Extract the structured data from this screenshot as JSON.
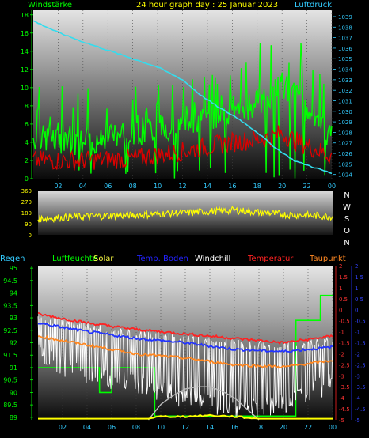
{
  "header": {
    "left": "Windstärke",
    "center": "24 hour graph day : 25 Januar 2023",
    "right": "Luftdruck"
  },
  "compass": [
    "N",
    "W",
    "S",
    "O",
    "N"
  ],
  "legend": [
    {
      "text": "Regen",
      "color": "#33CCFF"
    },
    {
      "text": "Luftfeuchte",
      "color": "#00FF00"
    },
    {
      "text": "Solar",
      "color": "#FFFF44"
    },
    {
      "text": "Temp. Boden",
      "color": "#2222FF"
    },
    {
      "text": "Windchill",
      "color": "#FFFFFF"
    },
    {
      "text": "Temperatur",
      "color": "#FF2222"
    },
    {
      "text": "Taupunkt",
      "color": "#FF8822"
    }
  ],
  "chart_data": [
    {
      "type": "line",
      "name": "wind-pressure",
      "x_ticks": [
        "02",
        "04",
        "06",
        "08",
        "10",
        "12",
        "14",
        "16",
        "18",
        "20",
        "22",
        "00"
      ],
      "y_left_ticks": [
        "0",
        "2",
        "4",
        "6",
        "8",
        "10",
        "12",
        "14",
        "16",
        "18"
      ],
      "y_left_range": [
        0,
        18.5
      ],
      "y_right_ticks": [
        "1024",
        "1025",
        "1026",
        "1027",
        "1028",
        "1029",
        "1030",
        "1031",
        "1032",
        "1033",
        "1034",
        "1035",
        "1036",
        "1037",
        "1038",
        "1039"
      ],
      "y_right_range": [
        1023.6,
        1039.6
      ],
      "series": [
        {
          "color": "#00FF00",
          "hours": [
            0,
            4,
            8,
            12,
            16,
            19,
            20,
            21,
            24
          ],
          "values": [
            4.5,
            4.0,
            5.0,
            6.0,
            7.0,
            9.0,
            10.5,
            9.0,
            4.5
          ]
        },
        {
          "color": "#DD0000",
          "hours": [
            0,
            4,
            8,
            12,
            16,
            19,
            20,
            21,
            24
          ],
          "values": [
            2.0,
            2.0,
            2.2,
            3.0,
            4.0,
            4.5,
            5.0,
            4.2,
            2.5
          ]
        },
        {
          "color": "#33DDEE",
          "hours": [
            0,
            2,
            4,
            6,
            8,
            10,
            12,
            13.5,
            15,
            16.5,
            18,
            19.5,
            21,
            22.5,
            24
          ],
          "values": [
            1038.6,
            1037.5,
            1036.6,
            1035.8,
            1035.0,
            1034.2,
            1033.0,
            1031.5,
            1030.3,
            1029.3,
            1028.0,
            1026.5,
            1025.3,
            1024.7,
            1024.1
          ]
        }
      ]
    },
    {
      "type": "line",
      "name": "wind-direction",
      "x_ticks": [],
      "y_ticks": [
        "0",
        "90",
        "180",
        "270",
        "360"
      ],
      "y_range": [
        0,
        360
      ],
      "series": [
        {
          "color": "#FFFF00",
          "hours": [
            0,
            4,
            8,
            12,
            16,
            20,
            24
          ],
          "values": [
            130,
            150,
            160,
            180,
            200,
            165,
            150
          ]
        }
      ]
    },
    {
      "type": "line",
      "name": "humidity-temperature",
      "x_ticks": [
        "02",
        "04",
        "06",
        "08",
        "10",
        "12",
        "14",
        "16",
        "18",
        "20",
        "22",
        "00"
      ],
      "y_left_ticks": [
        "89",
        "89.5",
        "90",
        "90.5",
        "91",
        "91.5",
        "92",
        "92.5",
        "93",
        "93.5",
        "94",
        "94.5",
        "95"
      ],
      "y_left_range": [
        88.9,
        95.1
      ],
      "y_right_ticks": [
        "2",
        "1.5",
        "1",
        "0.5",
        "0",
        "-0.5",
        "-1",
        "-1.5",
        "-2",
        "-2.5",
        "-3",
        "-3.5",
        "-4",
        "-4.5",
        "-5"
      ],
      "y_right_range": [
        -5,
        2
      ],
      "series": [
        {
          "color": "#00FF00",
          "hours": [
            0,
            5,
            5.01,
            6,
            6.01,
            9.5,
            9.51,
            21,
            21.01,
            23,
            23.01,
            24
          ],
          "values": [
            91,
            91,
            90,
            90,
            91,
            91,
            89.05,
            89.05,
            92.9,
            92.9,
            93.9,
            93.9
          ]
        },
        {
          "color": "#FF2222",
          "hours": [
            0,
            4,
            8,
            12,
            16,
            20,
            24
          ],
          "values": [
            -0.2,
            -0.6,
            -0.9,
            -1.1,
            -1.3,
            -1.5,
            -1.2
          ]
        },
        {
          "color": "#2233FF",
          "hours": [
            0,
            4,
            8,
            12,
            16,
            20,
            24
          ],
          "values": [
            -0.6,
            -1.0,
            -1.3,
            -1.5,
            -1.8,
            -1.9,
            -1.7
          ]
        },
        {
          "color": "#FF8822",
          "hours": [
            0,
            4,
            8,
            12,
            16,
            20,
            24
          ],
          "values": [
            -1.2,
            -1.6,
            -2.0,
            -2.2,
            -2.5,
            -2.6,
            -2.3
          ]
        },
        {
          "color": "#FFFFFF",
          "hours": [
            0,
            4,
            8,
            12,
            16,
            20,
            24
          ],
          "values": [
            -1.5,
            -2.5,
            -2.8,
            -3.5,
            -4.0,
            -3.8,
            -2.8
          ]
        },
        {
          "color": "#BBBBBB",
          "hours": [
            9,
            10,
            11,
            12,
            13,
            14,
            15,
            16,
            17,
            18
          ],
          "values": [
            -5,
            -4.3,
            -3.9,
            -3.6,
            -3.5,
            -3.5,
            -3.7,
            -4.0,
            -4.5,
            -5
          ]
        },
        {
          "color": "#FFFF00",
          "hours": [
            0,
            9,
            10,
            12,
            14,
            16,
            18,
            24
          ],
          "values": [
            -4.95,
            -4.95,
            -4.85,
            -4.85,
            -4.8,
            -4.85,
            -4.95,
            -4.95
          ]
        }
      ]
    }
  ]
}
